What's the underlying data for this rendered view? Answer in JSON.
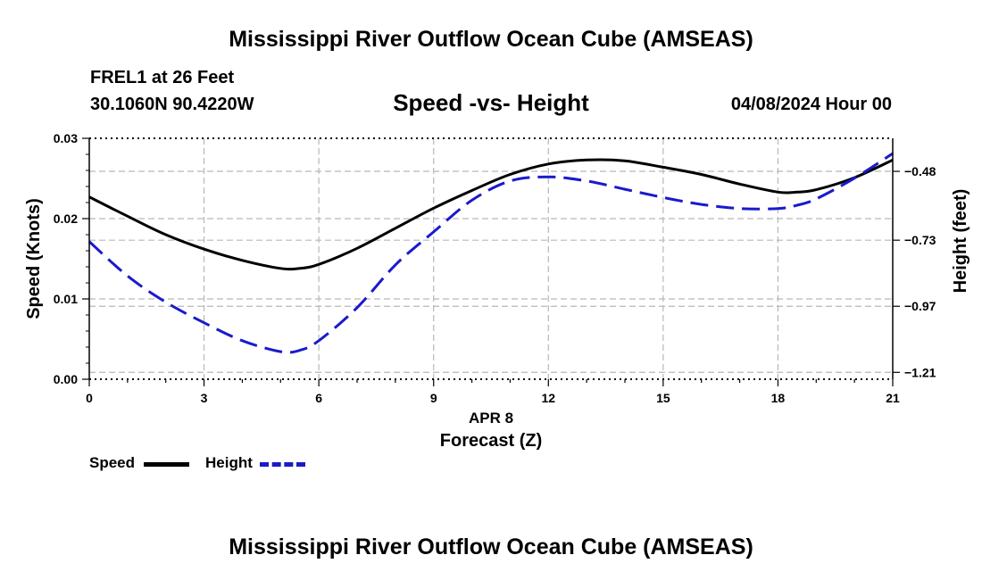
{
  "title_top": "Mississippi River Outflow Ocean Cube (AMSEAS)",
  "title_bottom": "Mississippi River Outflow Ocean Cube (AMSEAS)",
  "station": "FREL1 at 26 Feet",
  "coords": "30.1060N  90.4220W",
  "datetime": "04/08/2024 Hour 00",
  "chart_data": {
    "type": "line",
    "title": "Speed -vs- Height",
    "xlabel": "Forecast (Z)",
    "xdate": "APR 8",
    "ylabel": "Speed (Knots)",
    "y2label": "Height (feet)",
    "xlim": [
      0,
      21
    ],
    "ylim": [
      0,
      0.03
    ],
    "y2lim": [
      -1.235,
      -0.36
    ],
    "xticks": [
      0,
      3,
      6,
      9,
      12,
      15,
      18,
      21
    ],
    "yticks": [
      {
        "value": 0.0,
        "label": "0.00"
      },
      {
        "value": 0.01,
        "label": "0.01"
      },
      {
        "value": 0.02,
        "label": "0.02"
      },
      {
        "value": 0.03,
        "label": "0.03"
      }
    ],
    "y2ticks": [
      -0.48,
      -0.73,
      -0.97,
      -1.21
    ],
    "series": [
      {
        "name": "Speed",
        "axis": "left",
        "color": "#000000",
        "dash": "",
        "x": [
          0,
          1,
          2,
          3,
          4,
          5,
          5.5,
          6,
          7,
          8,
          9,
          10,
          11,
          12,
          13,
          14,
          15,
          16,
          17,
          18,
          18.5,
          19,
          20,
          21
        ],
        "values": [
          0.0227,
          0.0203,
          0.018,
          0.0162,
          0.0148,
          0.0138,
          0.0138,
          0.0143,
          0.0163,
          0.0188,
          0.0213,
          0.0235,
          0.0255,
          0.0268,
          0.0273,
          0.0272,
          0.0264,
          0.0255,
          0.0243,
          0.0233,
          0.0233,
          0.0236,
          0.0251,
          0.0273
        ]
      },
      {
        "name": "Height",
        "axis": "right",
        "color": "#1a1acc",
        "dash": "20,9",
        "x": [
          0,
          1,
          2,
          3,
          4,
          5,
          5.5,
          6,
          7,
          8,
          9,
          10,
          11,
          12,
          13,
          14,
          15,
          16,
          17,
          18,
          18.5,
          19,
          20,
          21
        ],
        "values": [
          -0.735,
          -0.86,
          -0.955,
          -1.03,
          -1.095,
          -1.135,
          -1.13,
          -1.095,
          -0.975,
          -0.82,
          -0.7,
          -0.585,
          -0.515,
          -0.5,
          -0.515,
          -0.545,
          -0.575,
          -0.6,
          -0.615,
          -0.615,
          -0.603,
          -0.58,
          -0.505,
          -0.415
        ]
      }
    ],
    "legend": [
      {
        "label": "Speed",
        "color": "#000000"
      },
      {
        "label": "Height",
        "color": "#1a1acc"
      }
    ]
  }
}
